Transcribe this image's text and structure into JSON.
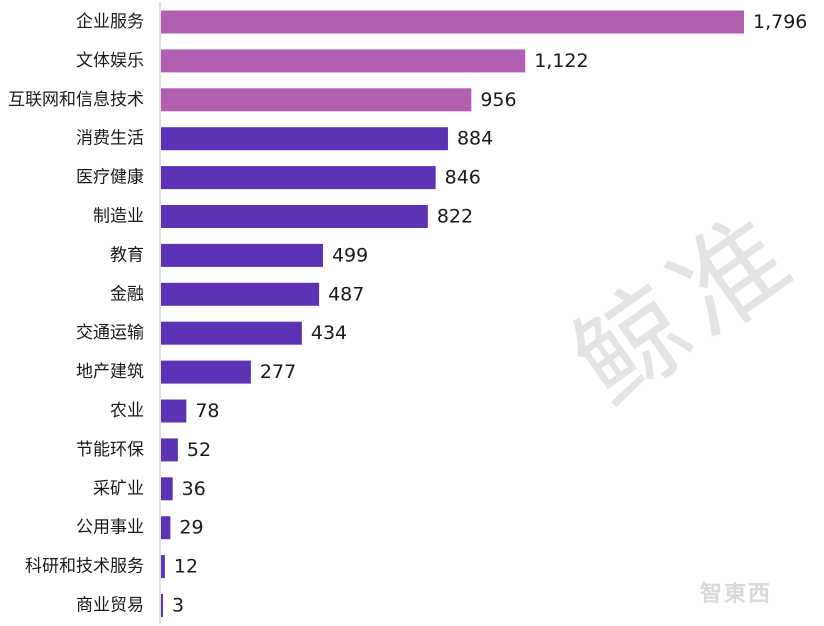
{
  "chart_data": {
    "type": "bar",
    "orientation": "horizontal",
    "title": "",
    "xlabel": "",
    "ylabel": "",
    "xlim": [
      0,
      1796
    ],
    "grid": false,
    "legend": "none",
    "categories": [
      "企业服务",
      "文体娱乐",
      "互联网和信息技术",
      "消费生活",
      "医疗健康",
      "制造业",
      "教育",
      "金融",
      "交通运输",
      "地产建筑",
      "农业",
      "节能环保",
      "采矿业",
      "公用事业",
      "科研和技术服务",
      "商业贸易"
    ],
    "value_labels": [
      "1,796",
      "1,122",
      "956",
      "884",
      "846",
      "822",
      "499",
      "487",
      "434",
      "277",
      "78",
      "52",
      "36",
      "29",
      "12",
      "3"
    ],
    "values": [
      1796,
      1122,
      956,
      884,
      846,
      822,
      499,
      487,
      434,
      277,
      78,
      52,
      36,
      29,
      12,
      3
    ],
    "colors": [
      "#b25fb1",
      "#b25fb1",
      "#b25fb1",
      "#5c33b4",
      "#5c33b4",
      "#5c33b4",
      "#5c33b4",
      "#5c33b4",
      "#5c33b4",
      "#5c33b4",
      "#5c33b4",
      "#5c33b4",
      "#5c33b4",
      "#5c33b4",
      "#5c33b4",
      "#5c33b4"
    ]
  },
  "watermark": {
    "main": "鲸准",
    "corner": "智東西"
  }
}
